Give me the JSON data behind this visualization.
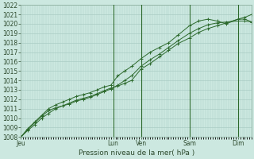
{
  "title": "Pression niveau de la mer( hPa )",
  "background_color": "#cce8e0",
  "grid_color": "#aaccc4",
  "line_color": "#2d6a2d",
  "vline_color": "#2d6a2d",
  "ylim": [
    1008,
    1022
  ],
  "yticks": [
    1008,
    1009,
    1010,
    1011,
    1012,
    1013,
    1014,
    1015,
    1016,
    1017,
    1018,
    1019,
    1020,
    1021
  ],
  "day_labels": [
    "Jeu",
    "Lun",
    "Ven",
    "Sam",
    "Dim"
  ],
  "day_positions": [
    0.0,
    0.4,
    0.52,
    0.73,
    0.94
  ],
  "vline_positions": [
    0.4,
    0.52,
    0.73,
    0.94
  ],
  "series1_x": [
    0.0,
    0.03,
    0.06,
    0.09,
    0.12,
    0.15,
    0.18,
    0.21,
    0.24,
    0.27,
    0.3,
    0.33,
    0.36,
    0.39,
    0.42,
    0.45,
    0.48,
    0.52,
    0.56,
    0.6,
    0.64,
    0.68,
    0.73,
    0.77,
    0.81,
    0.85,
    0.89,
    0.94,
    0.97,
    1.0
  ],
  "series1_y": [
    1008.0,
    1008.8,
    1009.5,
    1010.2,
    1010.8,
    1011.1,
    1011.3,
    1011.6,
    1011.9,
    1012.1,
    1012.3,
    1012.6,
    1012.9,
    1013.2,
    1013.4,
    1013.7,
    1014.0,
    1015.2,
    1015.8,
    1016.5,
    1017.2,
    1017.9,
    1018.5,
    1019.1,
    1019.5,
    1019.8,
    1020.1,
    1020.5,
    1020.7,
    1021.0
  ],
  "series2_x": [
    0.0,
    0.03,
    0.06,
    0.09,
    0.12,
    0.15,
    0.18,
    0.21,
    0.24,
    0.27,
    0.3,
    0.33,
    0.36,
    0.39,
    0.42,
    0.45,
    0.48,
    0.52,
    0.56,
    0.6,
    0.64,
    0.68,
    0.73,
    0.77,
    0.81,
    0.85,
    0.89,
    0.94,
    0.97,
    1.0
  ],
  "series2_y": [
    1008.0,
    1008.7,
    1009.3,
    1010.0,
    1010.5,
    1011.0,
    1011.3,
    1011.5,
    1011.8,
    1012.0,
    1012.2,
    1012.5,
    1012.8,
    1013.1,
    1013.5,
    1014.0,
    1014.5,
    1015.5,
    1016.2,
    1016.8,
    1017.5,
    1018.2,
    1019.0,
    1019.5,
    1019.9,
    1020.1,
    1020.2,
    1020.3,
    1020.3,
    1020.2
  ],
  "series3_x": [
    0.0,
    0.03,
    0.06,
    0.09,
    0.12,
    0.15,
    0.18,
    0.21,
    0.24,
    0.27,
    0.3,
    0.33,
    0.36,
    0.39,
    0.42,
    0.45,
    0.48,
    0.52,
    0.56,
    0.6,
    0.64,
    0.68,
    0.73,
    0.77,
    0.81,
    0.85,
    0.89,
    0.94,
    0.97,
    1.0
  ],
  "series3_y": [
    1008.0,
    1008.9,
    1009.6,
    1010.3,
    1011.0,
    1011.4,
    1011.7,
    1012.0,
    1012.3,
    1012.5,
    1012.7,
    1013.0,
    1013.3,
    1013.5,
    1014.5,
    1015.0,
    1015.5,
    1016.3,
    1017.0,
    1017.5,
    1018.0,
    1018.8,
    1019.8,
    1020.3,
    1020.5,
    1020.3,
    1020.0,
    1020.5,
    1020.5,
    1020.2
  ],
  "xlim": [
    0.0,
    1.0
  ],
  "label_fontsize": 5.5,
  "title_fontsize": 6.5
}
